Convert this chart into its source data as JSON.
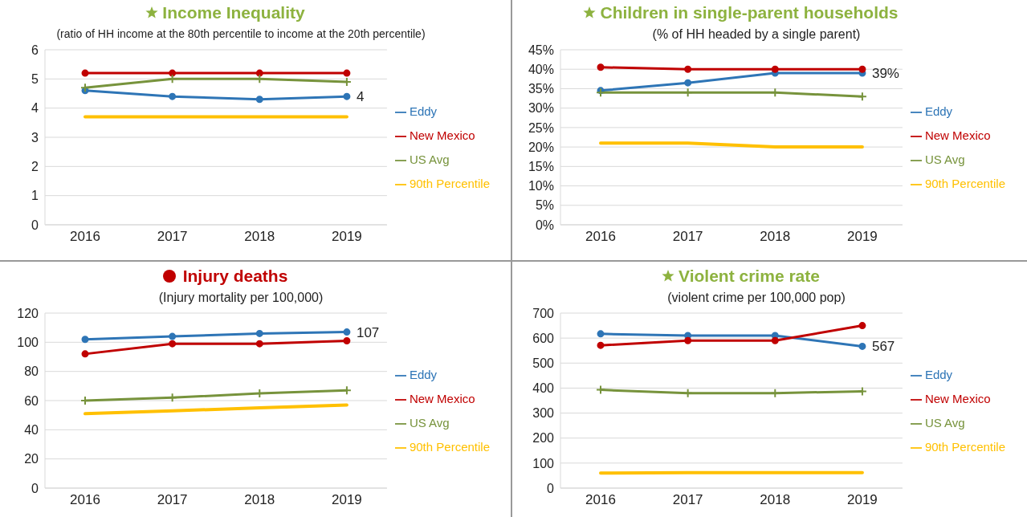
{
  "chart_data": [
    {
      "type": "line",
      "title": "Income Inequality",
      "subtitle": "(ratio of HH income at the 80th percentile to income at the 20th percentile)",
      "categories": [
        "2016",
        "2017",
        "2018",
        "2019"
      ],
      "series": [
        {
          "name": "Eddy",
          "color": "#2e75b6",
          "marker": "circle",
          "values": [
            4.6,
            4.4,
            4.3,
            4.4
          ]
        },
        {
          "name": "New Mexico",
          "color": "#c00000",
          "marker": "circle",
          "values": [
            5.2,
            5.2,
            5.2,
            5.2
          ]
        },
        {
          "name": "US Avg",
          "color": "#77933c",
          "marker": "cross",
          "values": [
            4.7,
            5.0,
            5.0,
            4.9
          ]
        },
        {
          "name": "90th Percentile",
          "color": "#ffc000",
          "marker": "none",
          "values": [
            3.7,
            3.7,
            3.7,
            3.7
          ]
        }
      ],
      "ylim": [
        0,
        6
      ],
      "yticks": [
        0,
        1,
        2,
        3,
        4,
        5,
        6
      ],
      "grid": "y",
      "legend": "right",
      "annotations": [
        {
          "text": "4",
          "x": "2019",
          "y": 4.4
        }
      ]
    },
    {
      "type": "line",
      "title": "Children in single-parent households",
      "subtitle": "(% of HH headed by a single parent)",
      "categories": [
        "2016",
        "2017",
        "2018",
        "2019"
      ],
      "series": [
        {
          "name": "Eddy",
          "color": "#2e75b6",
          "marker": "circle",
          "values": [
            34.5,
            36.5,
            39,
            39
          ]
        },
        {
          "name": "New Mexico",
          "color": "#c00000",
          "marker": "circle",
          "values": [
            40.5,
            40,
            40,
            40
          ]
        },
        {
          "name": "US Avg",
          "color": "#77933c",
          "marker": "cross",
          "values": [
            34,
            34,
            34,
            33
          ]
        },
        {
          "name": "90th Percentile",
          "color": "#ffc000",
          "marker": "none",
          "values": [
            21,
            21,
            20,
            20
          ]
        }
      ],
      "ylim": [
        0,
        45
      ],
      "yticks": [
        {
          "value": 0,
          "label": "0%"
        },
        {
          "value": 5,
          "label": "5%"
        },
        {
          "value": 10,
          "label": "10%"
        },
        {
          "value": 15,
          "label": "15%"
        },
        {
          "value": 20,
          "label": "20%"
        },
        {
          "value": 25,
          "label": "25%"
        },
        {
          "value": 30,
          "label": "30%"
        },
        {
          "value": 35,
          "label": "35%"
        },
        {
          "value": 40,
          "label": "40%"
        },
        {
          "value": 45,
          "label": "45%"
        }
      ],
      "grid": "y",
      "legend": "right",
      "annotations": [
        {
          "text": "39%",
          "x": "2019",
          "y": 39
        }
      ]
    },
    {
      "type": "line",
      "title": "Injury deaths",
      "subtitle": "(Injury mortality per 100,000)",
      "categories": [
        "2016",
        "2017",
        "2018",
        "2019"
      ],
      "series": [
        {
          "name": "Eddy",
          "color": "#2e75b6",
          "marker": "circle",
          "values": [
            102,
            104,
            106,
            107
          ]
        },
        {
          "name": "New Mexico",
          "color": "#c00000",
          "marker": "circle",
          "values": [
            92,
            99,
            99,
            101
          ]
        },
        {
          "name": "US Avg",
          "color": "#77933c",
          "marker": "cross",
          "values": [
            60,
            62,
            65,
            67
          ]
        },
        {
          "name": "90th Percentile",
          "color": "#ffc000",
          "marker": "none",
          "values": [
            51,
            53,
            55,
            57
          ]
        }
      ],
      "ylim": [
        0,
        120
      ],
      "yticks": [
        0,
        20,
        40,
        60,
        80,
        100,
        120
      ],
      "grid": "y",
      "legend": "right",
      "annotations": [
        {
          "text": "107",
          "x": "2019",
          "y": 107
        }
      ]
    },
    {
      "type": "line",
      "title": "Violent crime rate",
      "subtitle": "(violent crime per 100,000 pop)",
      "categories": [
        "2016",
        "2017",
        "2018",
        "2019"
      ],
      "series": [
        {
          "name": "Eddy",
          "color": "#2e75b6",
          "marker": "circle",
          "values": [
            617,
            610,
            610,
            567
          ]
        },
        {
          "name": "New Mexico",
          "color": "#c00000",
          "marker": "circle",
          "values": [
            571,
            590,
            590,
            650
          ]
        },
        {
          "name": "US Avg",
          "color": "#77933c",
          "marker": "cross",
          "values": [
            393,
            380,
            380,
            387
          ]
        },
        {
          "name": "90th Percentile",
          "color": "#ffc000",
          "marker": "none",
          "values": [
            60,
            62,
            62,
            62
          ]
        }
      ],
      "ylim": [
        0,
        700
      ],
      "yticks": [
        0,
        100,
        200,
        300,
        400,
        500,
        600,
        700
      ],
      "grid": "y",
      "legend": "right",
      "annotations": [
        {
          "text": "567",
          "x": "2019",
          "y": 567
        }
      ]
    }
  ]
}
